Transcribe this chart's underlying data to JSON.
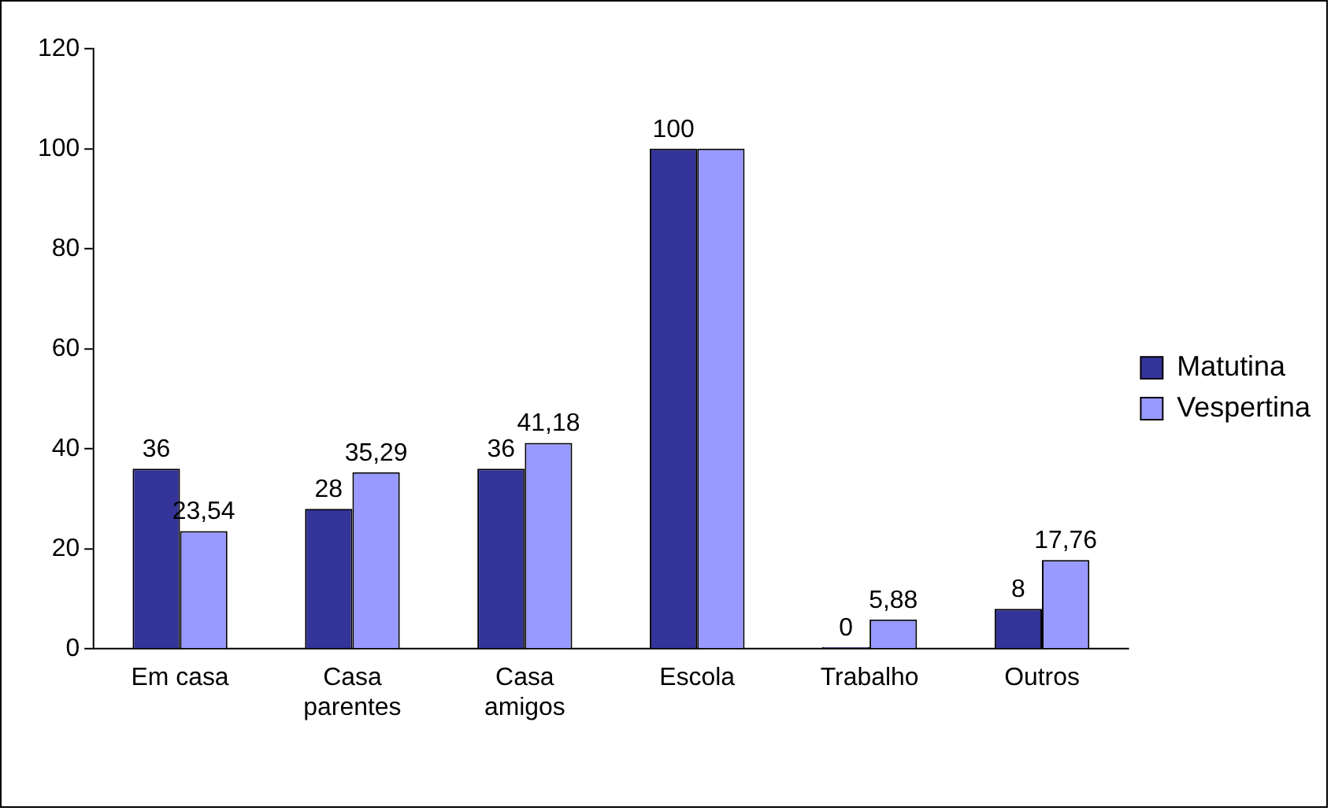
{
  "chart_data": {
    "type": "bar",
    "categories": [
      "Em casa",
      "Casa parentes",
      "Casa amigos",
      "Escola",
      "Trabalho",
      "Outros"
    ],
    "series": [
      {
        "name": "Matutina",
        "color": "#333399",
        "values": [
          36,
          28,
          36,
          100,
          0,
          8
        ],
        "value_labels": [
          "36",
          "28",
          "36",
          "100",
          "0",
          "8"
        ]
      },
      {
        "name": "Vespertina",
        "color": "#9999ff",
        "values": [
          23.54,
          35.29,
          41.18,
          100,
          5.88,
          17.76
        ],
        "value_labels": [
          "23,54",
          "35,29",
          "41,18",
          null,
          "5,88",
          "17,76"
        ]
      }
    ],
    "ylim": [
      0,
      120
    ],
    "yticks": [
      0,
      20,
      40,
      60,
      80,
      100,
      120
    ],
    "grid": false,
    "legend": "right"
  }
}
